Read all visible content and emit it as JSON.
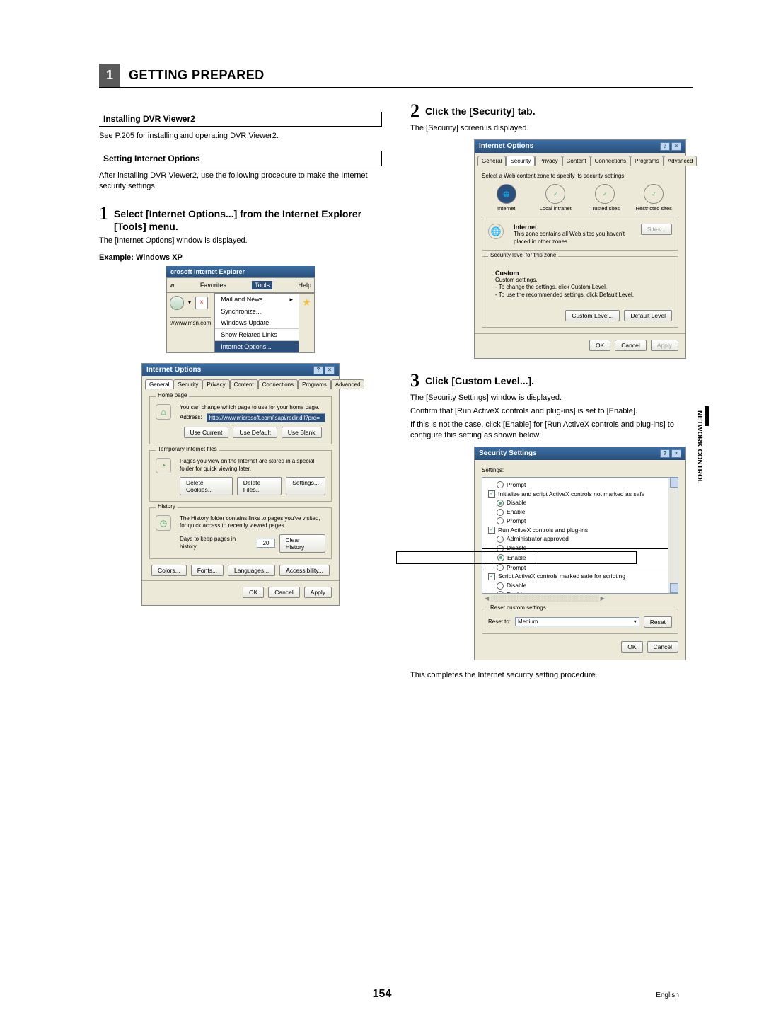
{
  "chapter": {
    "num": "1",
    "title": "GETTING PREPARED"
  },
  "left": {
    "sec1": {
      "title": "Installing DVR Viewer2",
      "body": "See P.205 for installing and operating DVR Viewer2."
    },
    "sec2": {
      "title": "Setting Internet Options",
      "body": "After installing DVR Viewer2, use the following procedure to make the Internet security settings."
    },
    "step1": {
      "num": "1",
      "title": "Select [Internet Options...] from the Internet Explorer [Tools] menu.",
      "body": "The [Internet Options] window is displayed.",
      "example": "Example: Windows XP"
    },
    "ie_window": {
      "title": "crosoft Internet Explorer",
      "menu_items": [
        "w",
        "Favorites",
        "Tools",
        "Help"
      ],
      "tools_menu": {
        "items": [
          "Mail and News",
          "Synchronize...",
          "Windows Update",
          "Show Related Links",
          "Internet Options..."
        ],
        "highlighted": "Internet Options..."
      },
      "address": "://www.msn.com"
    },
    "iopts": {
      "title": "Internet Options",
      "tabs": [
        "General",
        "Security",
        "Privacy",
        "Content",
        "Connections",
        "Programs",
        "Advanced"
      ],
      "active_tab": "General",
      "homepage": {
        "legend": "Home page",
        "desc": "You can change which page to use for your home page.",
        "addr_label": "Address:",
        "addr_value": "http://www.microsoft.com/isapi/redir.dll?prd=",
        "btns": [
          "Use Current",
          "Use Default",
          "Use Blank"
        ]
      },
      "tempfiles": {
        "legend": "Temporary Internet files",
        "desc": "Pages you view on the Internet are stored in a special folder for quick viewing later.",
        "btns": [
          "Delete Cookies...",
          "Delete Files...",
          "Settings..."
        ]
      },
      "history": {
        "legend": "History",
        "desc": "The History folder contains links to pages you've visited, for quick access to recently viewed pages.",
        "days_label": "Days to keep pages in history:",
        "days_value": "20",
        "clear": "Clear History"
      },
      "bottom_btns": [
        "Colors...",
        "Fonts...",
        "Languages...",
        "Accessibility..."
      ],
      "action_btns": [
        "OK",
        "Cancel",
        "Apply"
      ]
    }
  },
  "right": {
    "step2": {
      "num": "2",
      "title": "Click the [Security] tab.",
      "body": "The [Security] screen is displayed."
    },
    "sec_dialog": {
      "title": "Internet Options",
      "tabs": [
        "General",
        "Security",
        "Privacy",
        "Content",
        "Connections",
        "Programs",
        "Advanced"
      ],
      "active_tab": "Security",
      "instr": "Select a Web content zone to specify its security settings.",
      "zones": [
        {
          "label": "Internet",
          "active": true
        },
        {
          "label": "Local intranet"
        },
        {
          "label": "Trusted sites"
        },
        {
          "label": "Restricted sites"
        }
      ],
      "zone_detail": {
        "name": "Internet",
        "desc": "This zone contains all Web sites you haven't placed in other zones",
        "sites_btn": "Sites..."
      },
      "level": {
        "legend": "Security level for this zone",
        "name": "Custom",
        "sub": "Custom settings.",
        "l1": "- To change the settings, click Custom Level.",
        "l2": "- To use the recommended settings, click Default Level.",
        "btns": [
          "Custom Level...",
          "Default Level"
        ]
      },
      "action_btns": [
        "OK",
        "Cancel",
        "Apply"
      ]
    },
    "step3": {
      "num": "3",
      "title": "Click [Custom Level...].",
      "b1": "The [Security Settings] window is displayed.",
      "b2": "Confirm that [Run ActiveX controls and plug-ins] is set to [Enable].",
      "b3": "If this is not the case, click [Enable] for [Run ActiveX controls and plug-ins] to configure this setting as shown below."
    },
    "ssettings": {
      "title": "Security Settings",
      "label": "Settings:",
      "rows": [
        {
          "t": "radio",
          "text": "Prompt"
        },
        {
          "t": "check",
          "text": "Initialize and script ActiveX controls not marked as safe"
        },
        {
          "t": "radio",
          "text": "Disable",
          "sel": true
        },
        {
          "t": "radio",
          "text": "Enable"
        },
        {
          "t": "radio",
          "text": "Prompt"
        },
        {
          "t": "check",
          "text": "Run ActiveX controls and plug-ins"
        },
        {
          "t": "radio",
          "text": "Administrator approved"
        },
        {
          "t": "radio",
          "text": "Disable",
          "strike": true
        },
        {
          "t": "radio",
          "text": "Enable",
          "sel": true,
          "hl": true
        },
        {
          "t": "radio",
          "text": "Prompt",
          "strike": true
        },
        {
          "t": "check",
          "text": "Script ActiveX controls marked safe for scripting"
        },
        {
          "t": "radio",
          "text": "Disable"
        },
        {
          "t": "radio",
          "text": "Enable",
          "sel": true
        }
      ],
      "reset": {
        "legend": "Reset custom settings",
        "label": "Reset to:",
        "value": "Medium",
        "btn": "Reset"
      },
      "action_btns": [
        "OK",
        "Cancel"
      ]
    },
    "closing": "This completes the Internet security setting procedure."
  },
  "side_tab": "NETWORK\nCONTROL",
  "page_num": "154",
  "lang": "English"
}
